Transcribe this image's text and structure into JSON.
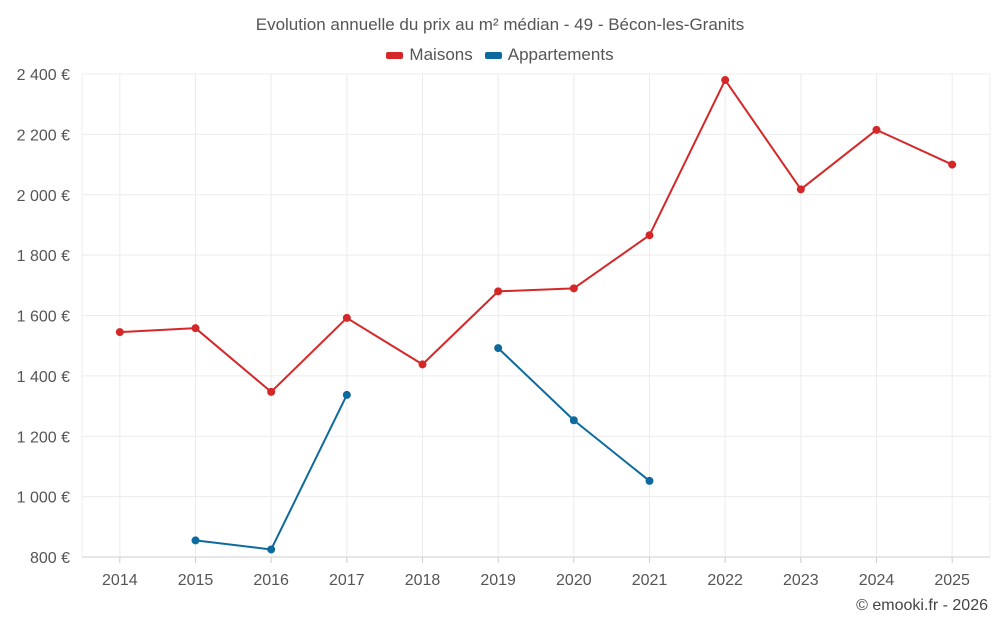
{
  "chart_data": {
    "type": "line",
    "title": "Evolution annuelle du prix au m² médian - 49 - Bécon-les-Granits",
    "categories": [
      "2014",
      "2015",
      "2016",
      "2017",
      "2018",
      "2019",
      "2020",
      "2021",
      "2022",
      "2023",
      "2024",
      "2025"
    ],
    "series": [
      {
        "name": "Maisons",
        "color": "#d62728",
        "values": [
          1545,
          1558,
          1347,
          1592,
          1438,
          1680,
          1690,
          1866,
          2380,
          2018,
          2215,
          2100
        ]
      },
      {
        "name": "Appartements",
        "color": "#0d6a9e",
        "values": [
          null,
          855,
          825,
          1337,
          null,
          1492,
          1253,
          1052,
          null,
          null,
          null,
          null
        ]
      }
    ],
    "yticks": [
      800,
      1000,
      1200,
      1400,
      1600,
      1800,
      2000,
      2200,
      2400
    ],
    "ytick_labels": [
      "800 €",
      "1 000 €",
      "1 200 €",
      "1 400 €",
      "1 600 €",
      "1 800 €",
      "2 000 €",
      "2 200 €",
      "2 400 €"
    ],
    "ylim": [
      800,
      2400
    ],
    "xlabel": "",
    "ylabel": "",
    "grid": true,
    "legend": "top-center"
  },
  "credit": "© emooki.fr - 2026"
}
